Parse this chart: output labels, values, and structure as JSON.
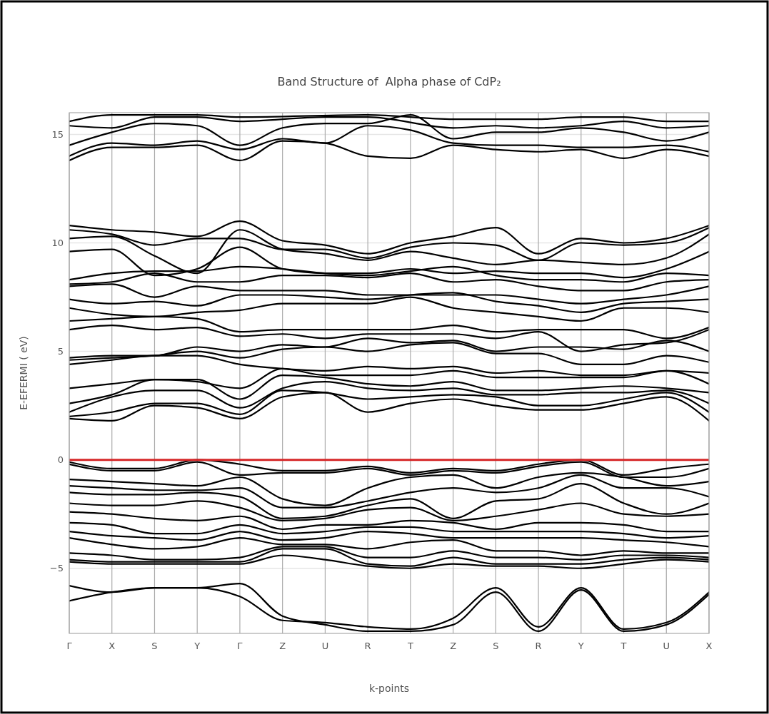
{
  "chart_data": {
    "type": "line",
    "title": "Band Structure of  Alpha phase of CdP₂",
    "xlabel": "k-points",
    "ylabel": "E-EFERMI ( eV)",
    "categories": [
      "Γ",
      "X",
      "S",
      "Y",
      "Γ",
      "Z",
      "U",
      "R",
      "T",
      "Z",
      "S",
      "R",
      "Y",
      "T",
      "U",
      "X"
    ],
    "ylim": [
      -8,
      16
    ],
    "yticks": [
      -5,
      0,
      5,
      10,
      15
    ],
    "grid": true,
    "marker": "none",
    "line_style": "solid",
    "ref_lines": [
      {
        "axis": "y",
        "value": 0,
        "color": "#d62728"
      }
    ],
    "series": [
      {
        "color": "#000000",
        "values": [
          -6.5,
          -6.1,
          -5.9,
          -5.9,
          -6.3,
          -7.4,
          -7.5,
          -7.7,
          -7.8,
          -7.3,
          -5.9,
          -7.7,
          -5.9,
          -7.8,
          -7.5,
          -6.1
        ]
      },
      {
        "color": "#000000",
        "values": [
          -5.8,
          -6.1,
          -5.9,
          -5.9,
          -5.7,
          -7.2,
          -7.6,
          -7.9,
          -7.9,
          -7.6,
          -6.1,
          -7.9,
          -6.0,
          -7.9,
          -7.6,
          -6.2
        ]
      },
      {
        "color": "#000000",
        "values": [
          -0.1,
          -0.4,
          -0.4,
          0,
          -0.2,
          -0.5,
          -0.5,
          -0.3,
          -0.6,
          -0.4,
          -0.5,
          -0.2,
          0,
          -0.7,
          -0.4,
          -0.2
        ]
      },
      {
        "color": "#000000",
        "values": [
          -0.2,
          -0.5,
          -0.5,
          -0.1,
          -0.7,
          -0.6,
          -0.6,
          -0.4,
          -0.7,
          -0.5,
          -0.6,
          -0.3,
          -0.1,
          -0.8,
          -0.8,
          -0.4
        ]
      },
      {
        "color": "#000000",
        "values": [
          -0.9,
          -1.0,
          -1.1,
          -1.2,
          -0.8,
          -1.8,
          -2.1,
          -1.3,
          -0.8,
          -0.7,
          -1.3,
          -0.8,
          -0.6,
          -0.8,
          -1.2,
          -1.0
        ]
      },
      {
        "color": "#000000",
        "values": [
          -1.2,
          -1.3,
          -1.4,
          -1.4,
          -1.3,
          -2.2,
          -2.2,
          -1.9,
          -1.5,
          -1.3,
          -1.5,
          -1.3,
          -0.7,
          -1.3,
          -1.3,
          -1.7
        ]
      },
      {
        "color": "#000000",
        "values": [
          -1.5,
          -1.6,
          -1.6,
          -1.5,
          -1.7,
          -2.7,
          -2.6,
          -2.1,
          -1.8,
          -2.7,
          -1.9,
          -1.8,
          -1.1,
          -2.0,
          -2.5,
          -2.0
        ]
      },
      {
        "color": "#000000",
        "values": [
          -2.0,
          -2.1,
          -2.1,
          -1.9,
          -2.2,
          -2.8,
          -2.7,
          -2.3,
          -2.2,
          -2.8,
          -2.6,
          -2.3,
          -2.0,
          -2.5,
          -2.6,
          -2.5
        ]
      },
      {
        "color": "#000000",
        "values": [
          -2.4,
          -2.5,
          -2.7,
          -2.8,
          -2.6,
          -3.2,
          -3.0,
          -3.0,
          -2.8,
          -2.9,
          -3.2,
          -2.9,
          -2.9,
          -3.0,
          -3.3,
          -3.3
        ]
      },
      {
        "color": "#000000",
        "values": [
          -2.9,
          -3.0,
          -3.4,
          -3.4,
          -3.0,
          -3.4,
          -3.3,
          -3.1,
          -3.1,
          -3.3,
          -3.3,
          -3.3,
          -3.3,
          -3.4,
          -3.6,
          -3.5
        ]
      },
      {
        "color": "#000000",
        "values": [
          -3.3,
          -3.5,
          -3.6,
          -3.7,
          -3.3,
          -3.7,
          -3.6,
          -3.3,
          -3.4,
          -3.6,
          -3.6,
          -3.6,
          -3.6,
          -3.7,
          -3.8,
          -4.0
        ]
      },
      {
        "color": "#000000",
        "values": [
          -3.6,
          -3.9,
          -4.1,
          -4.0,
          -3.6,
          -3.9,
          -3.9,
          -4.1,
          -3.8,
          -3.7,
          -4.2,
          -4.2,
          -4.4,
          -4.2,
          -4.3,
          -4.3
        ]
      },
      {
        "color": "#000000",
        "values": [
          -4.3,
          -4.4,
          -4.6,
          -4.6,
          -4.5,
          -4.0,
          -4.0,
          -4.5,
          -4.5,
          -4.2,
          -4.5,
          -4.5,
          -4.6,
          -4.4,
          -4.4,
          -4.5
        ]
      },
      {
        "color": "#000000",
        "values": [
          -4.6,
          -4.7,
          -4.7,
          -4.7,
          -4.7,
          -4.1,
          -4.1,
          -4.8,
          -4.9,
          -4.5,
          -4.8,
          -4.8,
          -4.8,
          -4.6,
          -4.5,
          -4.6
        ]
      },
      {
        "color": "#000000",
        "values": [
          -4.7,
          -4.8,
          -4.8,
          -4.8,
          -4.8,
          -4.4,
          -4.6,
          -4.9,
          -5.0,
          -4.8,
          -4.9,
          -4.9,
          -5.0,
          -4.8,
          -4.6,
          -4.7
        ]
      },
      {
        "color": "#000000",
        "values": [
          1.9,
          1.8,
          2.5,
          2.4,
          1.9,
          2.9,
          3.1,
          2.2,
          2.6,
          2.8,
          2.5,
          2.3,
          2.3,
          2.6,
          2.9,
          1.8
        ]
      },
      {
        "color": "#000000",
        "values": [
          2.0,
          2.2,
          2.6,
          2.6,
          2.1,
          3.2,
          3.1,
          2.8,
          2.9,
          3.0,
          2.9,
          2.5,
          2.5,
          2.8,
          3.1,
          2.2
        ]
      },
      {
        "color": "#000000",
        "values": [
          2.2,
          2.9,
          3.2,
          3.2,
          2.4,
          3.3,
          3.6,
          3.3,
          3.2,
          3.3,
          3.0,
          3.0,
          3.1,
          3.1,
          3.2,
          2.6
        ]
      },
      {
        "color": "#000000",
        "values": [
          2.6,
          3.0,
          3.7,
          3.7,
          2.8,
          3.9,
          3.8,
          3.5,
          3.4,
          3.6,
          3.2,
          3.2,
          3.3,
          3.4,
          3.3,
          3.1
        ]
      },
      {
        "color": "#000000",
        "values": [
          3.3,
          3.5,
          3.7,
          3.6,
          3.3,
          4.2,
          3.9,
          3.9,
          3.9,
          4.1,
          3.8,
          3.8,
          3.8,
          3.8,
          4.1,
          3.5
        ]
      },
      {
        "color": "#000000",
        "values": [
          4.4,
          4.6,
          4.8,
          4.8,
          4.4,
          4.2,
          4.1,
          4.3,
          4.2,
          4.3,
          4.0,
          4.1,
          3.9,
          3.9,
          4.1,
          4.0
        ]
      },
      {
        "color": "#000000",
        "values": [
          4.6,
          4.7,
          4.8,
          5.0,
          4.7,
          5.1,
          5.2,
          5.0,
          5.3,
          5.4,
          4.9,
          4.9,
          4.4,
          4.4,
          4.8,
          4.5
        ]
      },
      {
        "color": "#000000",
        "values": [
          4.7,
          4.8,
          4.8,
          5.2,
          5.0,
          5.3,
          5.2,
          5.6,
          5.4,
          5.5,
          5.0,
          5.2,
          5.2,
          5.1,
          5.5,
          5.0
        ]
      },
      {
        "color": "#000000",
        "values": [
          6.0,
          6.2,
          6.0,
          6.1,
          5.7,
          5.8,
          5.6,
          5.8,
          5.8,
          5.8,
          5.6,
          5.9,
          5.0,
          5.3,
          5.4,
          6.0
        ]
      },
      {
        "color": "#000000",
        "values": [
          6.4,
          6.5,
          6.6,
          6.5,
          5.9,
          6.0,
          6.0,
          6.0,
          6.0,
          6.2,
          5.9,
          6.0,
          6.0,
          6.0,
          5.6,
          6.1
        ]
      },
      {
        "color": "#000000",
        "values": [
          7.0,
          6.7,
          6.6,
          6.8,
          6.9,
          7.2,
          7.2,
          7.2,
          7.5,
          7.0,
          6.8,
          6.6,
          6.4,
          7.0,
          7.0,
          6.8
        ]
      },
      {
        "color": "#000000",
        "values": [
          7.4,
          7.2,
          7.3,
          7.1,
          7.6,
          7.6,
          7.5,
          7.4,
          7.6,
          7.7,
          7.3,
          7.1,
          6.8,
          7.2,
          7.3,
          7.4
        ]
      },
      {
        "color": "#000000",
        "values": [
          8.0,
          8.1,
          7.5,
          8.0,
          7.8,
          7.8,
          7.8,
          7.6,
          7.6,
          7.6,
          7.6,
          7.4,
          7.2,
          7.4,
          7.6,
          8.0
        ]
      },
      {
        "color": "#000000",
        "values": [
          8.1,
          8.2,
          8.6,
          8.2,
          8.2,
          8.5,
          8.5,
          8.4,
          8.6,
          8.2,
          8.3,
          8.0,
          7.8,
          7.8,
          8.2,
          8.3
        ]
      },
      {
        "color": "#000000",
        "values": [
          8.3,
          8.6,
          8.7,
          8.7,
          8.9,
          8.8,
          8.6,
          8.5,
          8.7,
          8.9,
          8.5,
          8.3,
          8.3,
          8.2,
          8.6,
          8.5
        ]
      },
      {
        "color": "#000000",
        "values": [
          9.6,
          9.7,
          8.5,
          8.8,
          9.8,
          8.8,
          8.6,
          8.6,
          8.8,
          8.6,
          8.7,
          8.6,
          8.6,
          8.4,
          8.8,
          9.6
        ]
      },
      {
        "color": "#000000",
        "values": [
          10.2,
          10.3,
          9.4,
          8.6,
          10.6,
          9.7,
          9.5,
          9.2,
          9.6,
          9.3,
          9.0,
          9.2,
          9.1,
          9.0,
          9.3,
          10.4
        ]
      },
      {
        "color": "#000000",
        "values": [
          10.6,
          10.4,
          9.9,
          10.2,
          10.2,
          9.7,
          9.7,
          9.3,
          9.8,
          10.0,
          9.9,
          9.2,
          10.0,
          9.9,
          10.0,
          10.7
        ]
      },
      {
        "color": "#000000",
        "values": [
          10.8,
          10.6,
          10.5,
          10.3,
          11.0,
          10.1,
          9.9,
          9.5,
          10.0,
          10.3,
          10.7,
          9.5,
          10.2,
          10.0,
          10.2,
          10.8
        ]
      },
      {
        "color": "#000000",
        "values": [
          13.8,
          14.4,
          14.4,
          14.5,
          13.8,
          14.7,
          14.6,
          14.0,
          13.9,
          14.5,
          14.3,
          14.2,
          14.3,
          13.9,
          14.3,
          14.0
        ]
      },
      {
        "color": "#000000",
        "values": [
          14.0,
          14.6,
          14.5,
          14.7,
          14.3,
          14.8,
          14.6,
          15.4,
          15.2,
          14.6,
          14.5,
          14.5,
          14.4,
          14.4,
          14.5,
          14.2
        ]
      },
      {
        "color": "#000000",
        "values": [
          14.5,
          15.1,
          15.5,
          15.4,
          14.5,
          15.3,
          15.5,
          15.5,
          15.9,
          14.8,
          15.1,
          15.1,
          15.3,
          15.1,
          14.7,
          15.1
        ]
      },
      {
        "color": "#000000",
        "values": [
          15.4,
          15.3,
          15.8,
          15.8,
          15.6,
          null,
          15.8,
          15.8,
          null,
          15.3,
          15.4,
          15.3,
          15.4,
          15.6,
          15.3,
          15.4
        ]
      },
      {
        "color": "#000000",
        "values": [
          15.6,
          15.9,
          15.9,
          15.9,
          15.8,
          null,
          null,
          15.9,
          null,
          15.7,
          15.7,
          15.7,
          15.8,
          15.8,
          15.6,
          15.6
        ]
      }
    ]
  }
}
